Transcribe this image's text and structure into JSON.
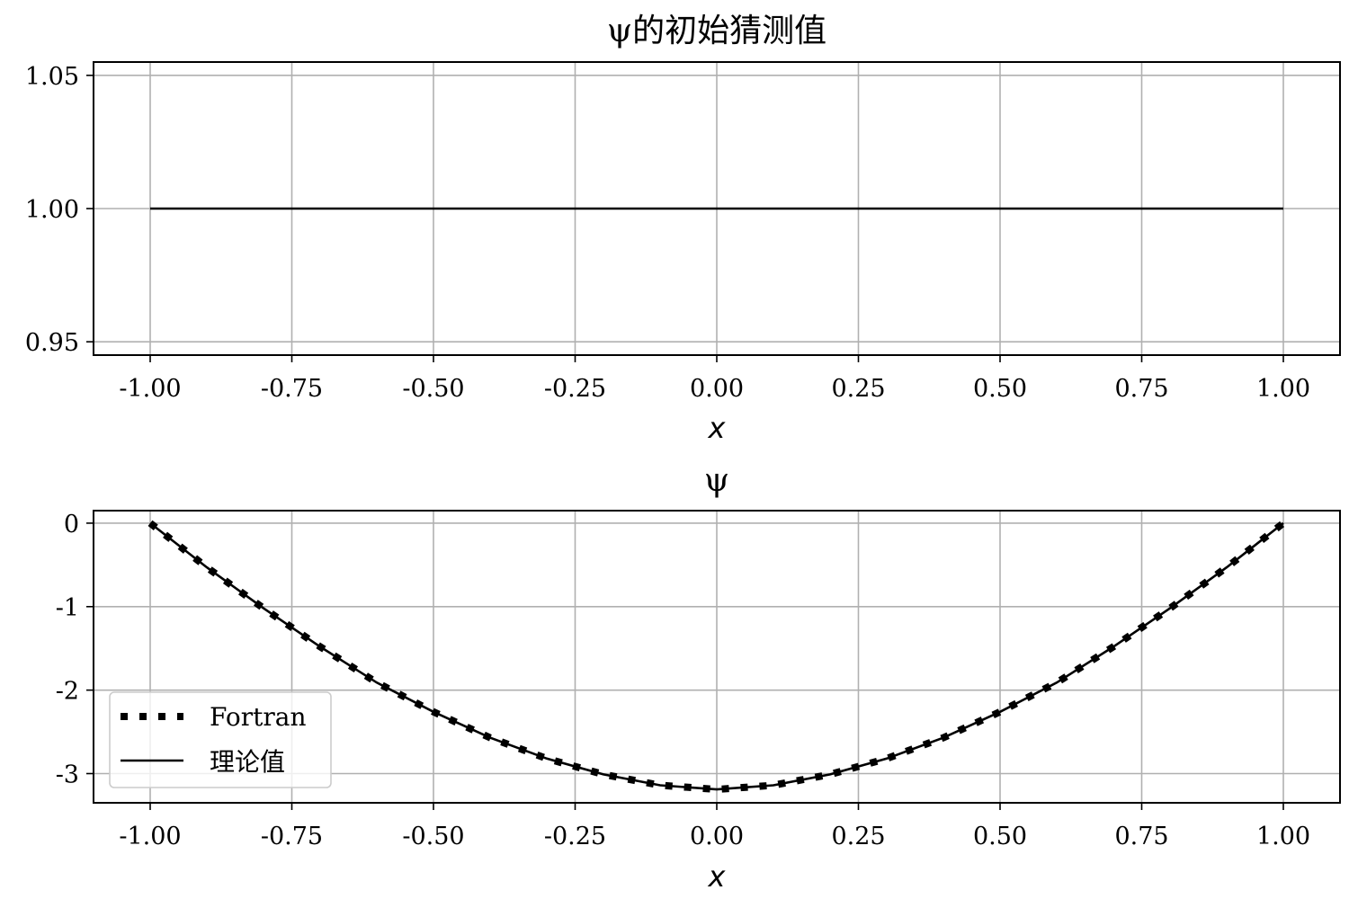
{
  "chart_data": [
    {
      "type": "line",
      "title": "ψ的初始猜测值",
      "xlabel": "x",
      "ylabel": "",
      "xlim": [
        -1.1,
        1.1
      ],
      "ylim": [
        0.945,
        1.055
      ],
      "xticks": [
        -1.0,
        -0.75,
        -0.5,
        -0.25,
        0.0,
        0.25,
        0.5,
        0.75,
        1.0
      ],
      "xtick_labels": [
        "-1.00",
        "-0.75",
        "-0.50",
        "-0.25",
        "0.00",
        "0.25",
        "0.50",
        "0.75",
        "1.00"
      ],
      "yticks": [
        0.95,
        1.0,
        1.05
      ],
      "ytick_labels": [
        "0.95",
        "1.00",
        "1.05"
      ],
      "grid": true,
      "series": [
        {
          "x": [
            -1.0,
            1.0
          ],
          "y": [
            1.0,
            1.0
          ],
          "style": "solid",
          "color": "#000000"
        }
      ]
    },
    {
      "type": "line",
      "title": "ψ",
      "xlabel": "x",
      "ylabel": "",
      "xlim": [
        -1.1,
        1.1
      ],
      "ylim": [
        -3.35,
        0.15
      ],
      "xticks": [
        -1.0,
        -0.75,
        -0.5,
        -0.25,
        0.0,
        0.25,
        0.5,
        0.75,
        1.0
      ],
      "xtick_labels": [
        "-1.00",
        "-0.75",
        "-0.50",
        "-0.25",
        "0.00",
        "0.25",
        "0.50",
        "0.75",
        "1.00"
      ],
      "yticks": [
        0,
        -1,
        -2,
        -3
      ],
      "ytick_labels": [
        "0",
        "-1",
        "-2",
        "-3"
      ],
      "grid": true,
      "legend": {
        "placement": "lower-left"
      },
      "series": [
        {
          "name": "Fortran",
          "style": "dotted",
          "color": "#000000",
          "x": [
            -1.0,
            -0.9,
            -0.8,
            -0.7,
            -0.6,
            -0.5,
            -0.4,
            -0.3,
            -0.2,
            -0.1,
            0.0,
            0.1,
            0.2,
            0.3,
            0.4,
            0.5,
            0.6,
            0.7,
            0.8,
            0.9,
            1.0
          ],
          "y": [
            0.0,
            -0.53,
            -1.02,
            -1.48,
            -1.91,
            -2.26,
            -2.57,
            -2.82,
            -3.01,
            -3.14,
            -3.19,
            -3.14,
            -3.01,
            -2.82,
            -2.57,
            -2.26,
            -1.91,
            -1.48,
            -1.02,
            -0.53,
            0.0
          ]
        },
        {
          "name": "理论值",
          "style": "solid",
          "color": "#000000",
          "x": [
            -1.0,
            -0.9,
            -0.8,
            -0.7,
            -0.6,
            -0.5,
            -0.4,
            -0.3,
            -0.2,
            -0.1,
            0.0,
            0.1,
            0.2,
            0.3,
            0.4,
            0.5,
            0.6,
            0.7,
            0.8,
            0.9,
            1.0
          ],
          "y": [
            0.0,
            -0.53,
            -1.02,
            -1.48,
            -1.91,
            -2.26,
            -2.57,
            -2.82,
            -3.01,
            -3.14,
            -3.19,
            -3.14,
            -3.01,
            -2.82,
            -2.57,
            -2.26,
            -1.91,
            -1.48,
            -1.02,
            -0.53,
            0.0
          ]
        }
      ]
    }
  ]
}
